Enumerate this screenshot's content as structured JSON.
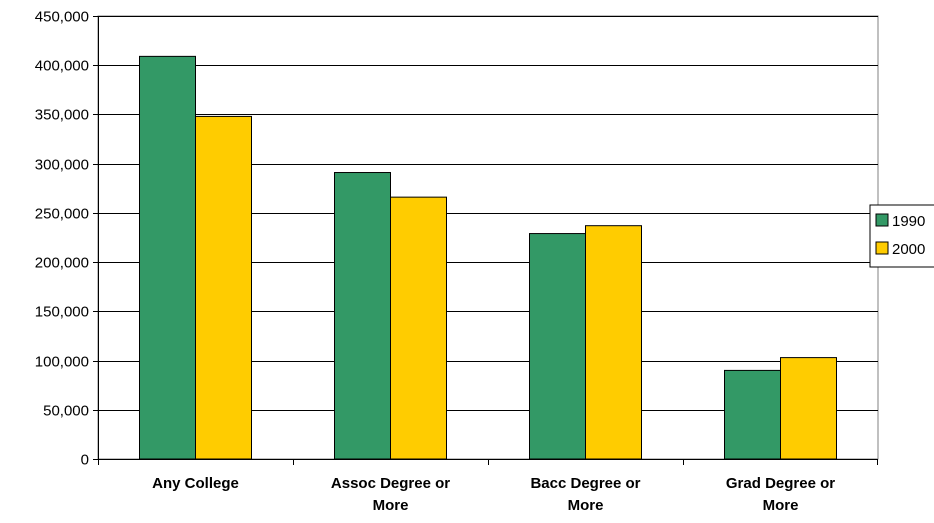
{
  "chart_data": {
    "type": "bar",
    "categories": [
      [
        "Any College"
      ],
      [
        "Assoc Degree or",
        "More"
      ],
      [
        "Bacc Degree or",
        "More"
      ],
      [
        "Grad Degree or",
        "More"
      ]
    ],
    "series": [
      {
        "name": "1990",
        "color": "#339966",
        "values": [
          409000,
          291000,
          229000,
          90000
        ]
      },
      {
        "name": "2000",
        "color": "#FFCC00",
        "values": [
          348000,
          266000,
          237000,
          103000
        ]
      }
    ],
    "ylim": [
      0,
      450000
    ],
    "yticks": [
      0,
      50000,
      100000,
      150000,
      200000,
      250000,
      300000,
      350000,
      400000,
      450000
    ],
    "ytick_labels": [
      "0",
      "50,000",
      "100,000",
      "150,000",
      "200,000",
      "250,000",
      "300,000",
      "350,000",
      "400,000",
      "450,000"
    ],
    "title": "",
    "xlabel": "",
    "ylabel": "",
    "legend_position": "right",
    "grid": true
  }
}
